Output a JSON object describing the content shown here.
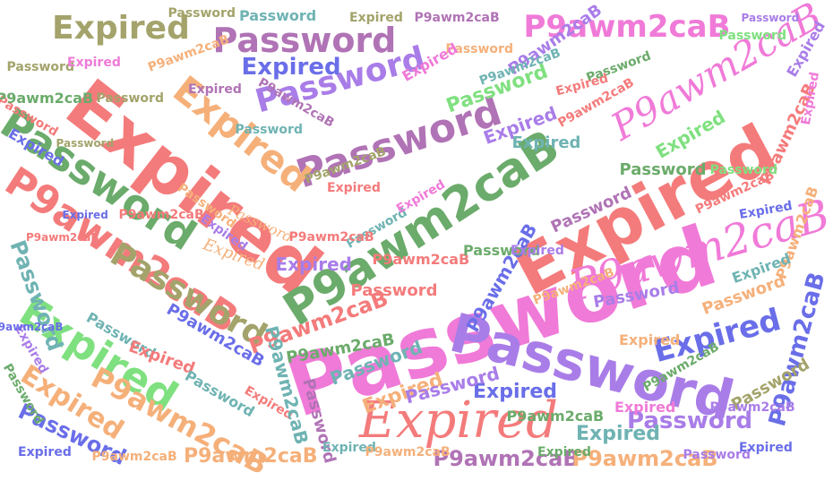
{
  "words": [
    "Expired",
    "Password",
    "P9awm2caB"
  ],
  "palette": {
    "pink": "#f07ad8",
    "salmon": "#f47b7b",
    "purple": "#a97de8",
    "orchid": "#b073b5",
    "green": "#6bab6b",
    "lime": "#7fe07f",
    "teal": "#6fb3b3",
    "blue": "#6a6ee8",
    "peach": "#f5b07a",
    "olive": "#a3a36b"
  }
}
